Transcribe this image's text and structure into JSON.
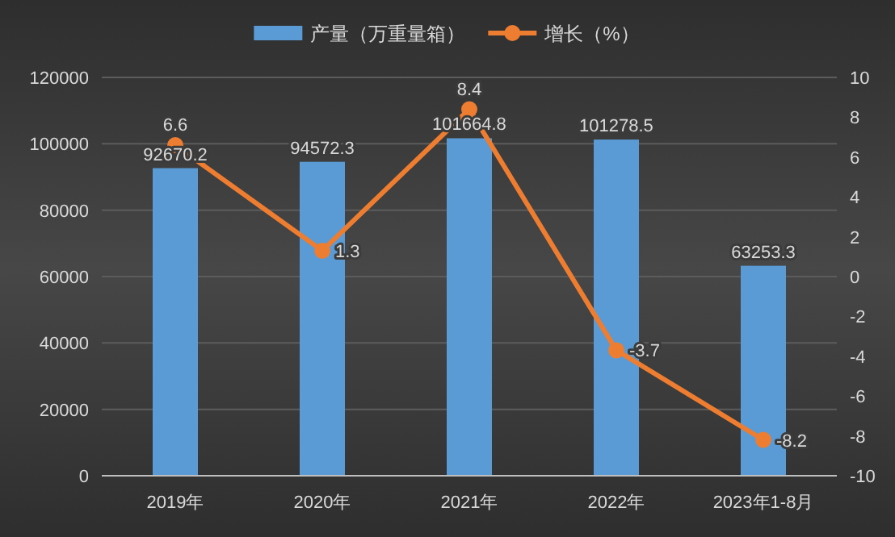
{
  "chart_data": {
    "type": "bar",
    "categories": [
      "2019年",
      "2020年",
      "2021年",
      "2022年",
      "2023年1-8月"
    ],
    "series": [
      {
        "name": "产量（万重量箱）",
        "color": "#5b9bd5",
        "values": [
          92670.2,
          94572.3,
          101664.8,
          101278.5,
          63253.3
        ]
      },
      {
        "name": "增长（%）",
        "type": "line",
        "axis": "y2",
        "color": "#ed7d31",
        "marker": "circle",
        "values": [
          6.6,
          1.3,
          8.4,
          -3.7,
          -8.2
        ]
      }
    ],
    "ylim": [
      0,
      120000
    ],
    "yticks": [
      0,
      20000,
      40000,
      60000,
      80000,
      100000,
      120000
    ],
    "y2lim": [
      -10,
      10
    ],
    "y2ticks": [
      -10,
      -8,
      -6,
      -4,
      -2,
      0,
      2,
      4,
      6,
      8,
      10
    ],
    "data_labels": true,
    "grid": "y",
    "legend": "top"
  }
}
